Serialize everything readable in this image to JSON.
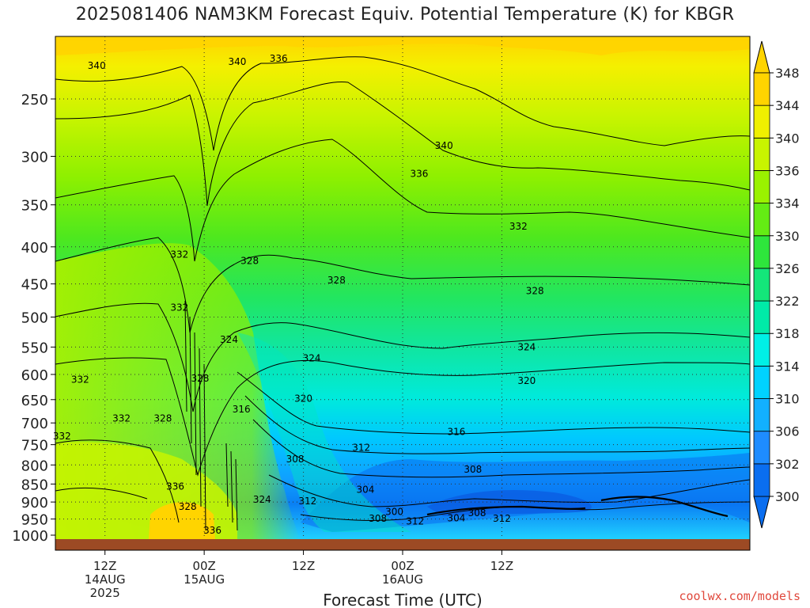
{
  "title": "2025081406 NAM3KM Forecast Equiv. Potential Temperature (K) for KBGR",
  "credit": "coolwx.com/models",
  "chart_data": {
    "type": "heatmap",
    "title": "2025081406 NAM3KM Forecast Equiv. Potential Temperature (K) for KBGR",
    "xlabel": "Forecast Time (UTC)",
    "ylabel": "",
    "x_range_hours": [
      6,
      90
    ],
    "x_ticks": [
      {
        "hour": 12,
        "lines": [
          "12Z",
          "14AUG",
          "2025"
        ]
      },
      {
        "hour": 24,
        "lines": [
          "00Z",
          "15AUG"
        ]
      },
      {
        "hour": 36,
        "lines": [
          "12Z"
        ]
      },
      {
        "hour": 48,
        "lines": [
          "00Z",
          "16AUG"
        ]
      },
      {
        "hour": 60,
        "lines": [
          "12Z"
        ]
      }
    ],
    "y_scale": "log-pressure",
    "y_range": [
      1000,
      200
    ],
    "y_ticks": [
      250,
      300,
      350,
      400,
      450,
      500,
      550,
      600,
      650,
      700,
      750,
      800,
      850,
      900,
      950,
      1000
    ],
    "grid": true,
    "colorbar": {
      "levels": [
        300,
        302,
        306,
        310,
        314,
        318,
        322,
        326,
        330,
        334,
        336,
        340,
        344,
        348
      ],
      "labels": [
        "300",
        "302",
        "306",
        "310",
        "314",
        "318",
        "322",
        "326",
        "330",
        "334",
        "336",
        "340",
        "344",
        "348"
      ],
      "colors": [
        "#0a6ef0",
        "#1e8cff",
        "#12b0ff",
        "#00d2ff",
        "#00f0e6",
        "#00eaa8",
        "#14e67a",
        "#2ee63c",
        "#64ec14",
        "#9af200",
        "#c8f400",
        "#f0f000",
        "#ffd400"
      ]
    },
    "contour_labels": [
      {
        "hour": 11.0,
        "p": 225,
        "value": "340"
      },
      {
        "hour": 28.0,
        "p": 222,
        "value": "340"
      },
      {
        "hour": 33.0,
        "p": 220,
        "value": "336"
      },
      {
        "hour": 53.0,
        "p": 290,
        "value": "340"
      },
      {
        "hour": 50.0,
        "p": 317,
        "value": "336"
      },
      {
        "hour": 62.0,
        "p": 375,
        "value": "332"
      },
      {
        "hour": 21.0,
        "p": 410,
        "value": "332"
      },
      {
        "hour": 29.5,
        "p": 418,
        "value": "328"
      },
      {
        "hour": 40.0,
        "p": 445,
        "value": "328"
      },
      {
        "hour": 64.0,
        "p": 460,
        "value": "328"
      },
      {
        "hour": 21.0,
        "p": 485,
        "value": "332"
      },
      {
        "hour": 27.0,
        "p": 537,
        "value": "324"
      },
      {
        "hour": 37.0,
        "p": 570,
        "value": "324"
      },
      {
        "hour": 63.0,
        "p": 550,
        "value": "324"
      },
      {
        "hour": 9.0,
        "p": 610,
        "value": "332"
      },
      {
        "hour": 23.5,
        "p": 608,
        "value": "328"
      },
      {
        "hour": 36.0,
        "p": 648,
        "value": "320"
      },
      {
        "hour": 63.0,
        "p": 612,
        "value": "320"
      },
      {
        "hour": 28.5,
        "p": 670,
        "value": "316"
      },
      {
        "hour": 14.0,
        "p": 690,
        "value": "332"
      },
      {
        "hour": 19.0,
        "p": 690,
        "value": "328"
      },
      {
        "hour": 6.8,
        "p": 730,
        "value": "332"
      },
      {
        "hour": 54.5,
        "p": 720,
        "value": "316"
      },
      {
        "hour": 43.0,
        "p": 757,
        "value": "312"
      },
      {
        "hour": 35.0,
        "p": 785,
        "value": "308"
      },
      {
        "hour": 56.5,
        "p": 812,
        "value": "308"
      },
      {
        "hour": 20.5,
        "p": 857,
        "value": "336"
      },
      {
        "hour": 43.5,
        "p": 865,
        "value": "304"
      },
      {
        "hour": 31.0,
        "p": 893,
        "value": "324"
      },
      {
        "hour": 36.5,
        "p": 898,
        "value": "312"
      },
      {
        "hour": 22.0,
        "p": 913,
        "value": "328"
      },
      {
        "hour": 47.0,
        "p": 928,
        "value": "300"
      },
      {
        "hour": 45.0,
        "p": 948,
        "value": "308"
      },
      {
        "hour": 49.5,
        "p": 957,
        "value": "312"
      },
      {
        "hour": 54.5,
        "p": 947,
        "value": "304"
      },
      {
        "hour": 57.0,
        "p": 932,
        "value": "308"
      },
      {
        "hour": 60.0,
        "p": 948,
        "value": "312"
      },
      {
        "hour": 25.0,
        "p": 985,
        "value": "336"
      }
    ]
  }
}
